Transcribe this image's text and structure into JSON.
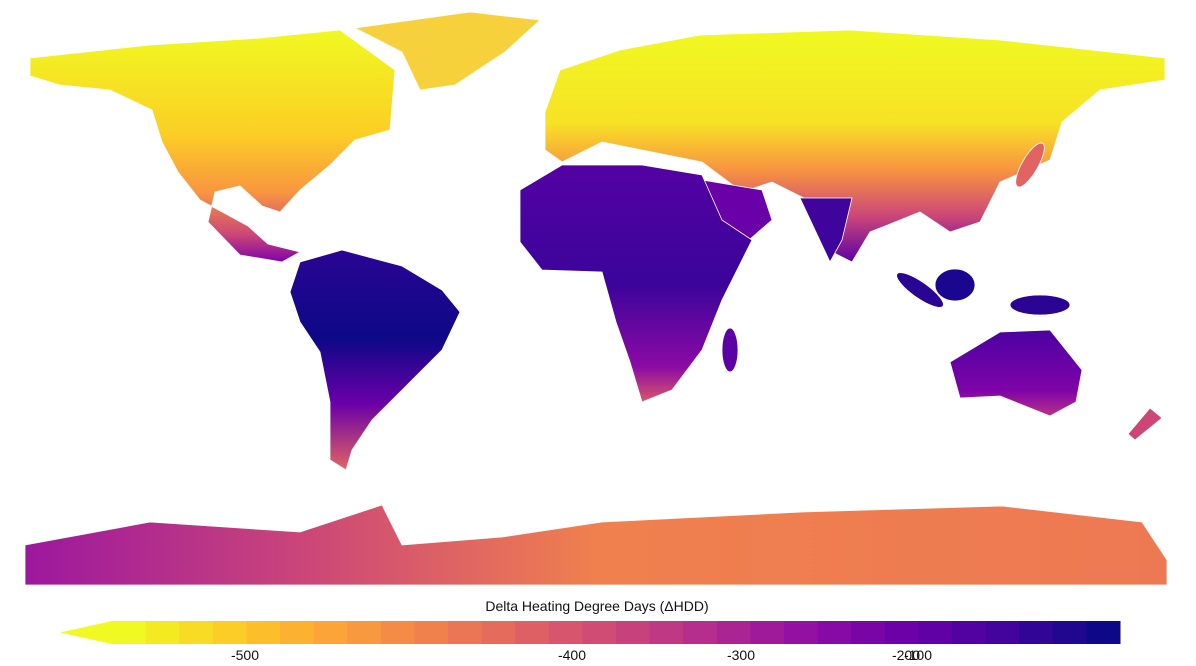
{
  "legend": {
    "title": "Delta Heating Degree Days (ΔHDD)",
    "ticks": [
      -500,
      -400,
      -300,
      -200,
      -100
    ]
  }
}
